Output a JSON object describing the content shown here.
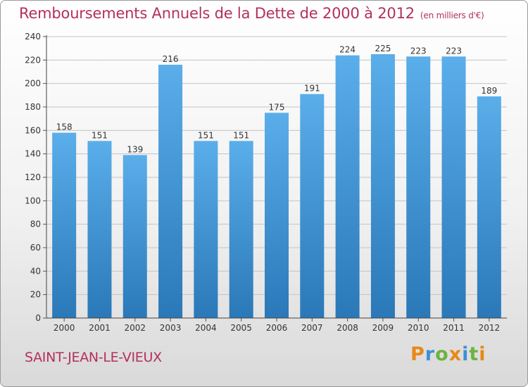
{
  "header": {
    "title": "Remboursements Annuels de la Dette de 2000 à 2012",
    "unit": "(en milliers d'€)"
  },
  "footer": {
    "town": "SAINT-JEAN-LE-VIEUX",
    "logo": "Proxiti"
  },
  "colors": {
    "accent": "#b4305a",
    "bar_light": "#5aaeea",
    "bar_dark": "#2a78b8",
    "logo_letters": [
      "#e8891a",
      "#3e8fd6",
      "#6db33f",
      "#e8891a",
      "#3e8fd6",
      "#6db33f",
      "#e8891a"
    ]
  },
  "chart_data": {
    "type": "bar",
    "title": "Remboursements Annuels de la Dette de 2000 à 2012",
    "xlabel": "",
    "ylabel": "",
    "categories": [
      "2000",
      "2001",
      "2002",
      "2003",
      "2004",
      "2005",
      "2006",
      "2007",
      "2008",
      "2009",
      "2010",
      "2011",
      "2012"
    ],
    "values": [
      158,
      151,
      139,
      216,
      151,
      151,
      175,
      191,
      224,
      225,
      223,
      223,
      189
    ],
    "ylim": [
      0,
      240
    ],
    "yticks": [
      0,
      20,
      40,
      60,
      80,
      100,
      120,
      140,
      160,
      180,
      200,
      220,
      240
    ],
    "grid": true,
    "data_labels": true
  }
}
